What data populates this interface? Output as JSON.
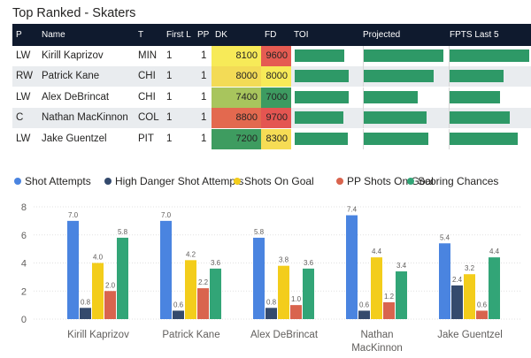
{
  "title": "Top Ranked - Skaters",
  "table": {
    "headers": [
      "P",
      "Name",
      "T",
      "First L",
      "PP",
      "DK",
      "FD",
      "TOI",
      "Projected",
      "FPTS Last 5"
    ],
    "rows": [
      {
        "pos": "LW",
        "name": "Kirill Kaprizov",
        "team": "MIN",
        "first_line": "1",
        "pp": "1",
        "dk": "8100",
        "fd": "9600",
        "dk_color": "#f7ea58",
        "fd_color": "#e55b52",
        "toi": 0.72,
        "proj": 0.98,
        "fpts": 0.98
      },
      {
        "pos": "RW",
        "name": "Patrick Kane",
        "team": "CHI",
        "first_line": "1",
        "pp": "1",
        "dk": "8000",
        "fd": "8000",
        "dk_color": "#f3db56",
        "fd_color": "#f7ea58",
        "toi": 0.78,
        "proj": 0.86,
        "fpts": 0.66
      },
      {
        "pos": "LW",
        "name": "Alex DeBrincat",
        "team": "CHI",
        "first_line": "1",
        "pp": "1",
        "dk": "7400",
        "fd": "7000",
        "dk_color": "#a8c55d",
        "fd_color": "#3d9b61",
        "toi": 0.78,
        "proj": 0.66,
        "fpts": 0.62
      },
      {
        "pos": "C",
        "name": "Nathan MacKinnon",
        "team": "COL",
        "first_line": "1",
        "pp": "1",
        "dk": "8800",
        "fd": "9700",
        "dk_color": "#e3694f",
        "fd_color": "#e45551",
        "toi": 0.7,
        "proj": 0.77,
        "fpts": 0.74
      },
      {
        "pos": "LW",
        "name": "Jake Guentzel",
        "team": "PIT",
        "first_line": "1",
        "pp": "1",
        "dk": "7200",
        "fd": "8300",
        "dk_color": "#3e9c60",
        "fd_color": "#f6dc55",
        "toi": 0.77,
        "proj": 0.79,
        "fpts": 0.84
      }
    ]
  },
  "legend": [
    {
      "label": "Shot Attempts",
      "color": "#4a84e0"
    },
    {
      "label": "High Danger Shot Attempts",
      "color": "#344a6d"
    },
    {
      "label": "Shots On Goal",
      "color": "#f3cd1b"
    },
    {
      "label": "PP Shots On Goal",
      "color": "#d9644e"
    },
    {
      "label": "Scoring Chances",
      "color": "#32a577"
    }
  ],
  "chart_data": {
    "type": "bar",
    "categories": [
      "Kirill Kaprizov",
      "Patrick Kane",
      "Alex DeBrincat",
      "Nathan\nMacKinnon",
      "Jake Guentzel"
    ],
    "series": [
      {
        "name": "Shot Attempts",
        "values": [
          7.0,
          7.0,
          5.8,
          7.4,
          5.4
        ],
        "labels": [
          "7.0",
          "7.0",
          "5.8",
          "7.4",
          "5.4"
        ]
      },
      {
        "name": "High Danger Shot Attempts",
        "values": [
          0.8,
          0.6,
          0.8,
          0.6,
          2.4
        ],
        "labels": [
          "0.8",
          "0.6",
          "0.8",
          "0.6",
          "2.4"
        ]
      },
      {
        "name": "Shots On Goal",
        "values": [
          4.0,
          4.2,
          3.8,
          4.4,
          3.2
        ],
        "labels": [
          "4.0",
          "4.2",
          "3.8",
          "4.4",
          "3.2"
        ]
      },
      {
        "name": "PP Shots On Goal",
        "values": [
          2.0,
          2.2,
          1.0,
          1.2,
          0.6
        ],
        "labels": [
          "2.0",
          "2.2",
          "1.0",
          "1.2",
          "0.6"
        ]
      },
      {
        "name": "Scoring Chances",
        "values": [
          5.8,
          3.6,
          3.6,
          3.4,
          4.4
        ],
        "labels": [
          "5.8",
          "3.6",
          "3.6",
          "3.4",
          "4.4"
        ]
      }
    ],
    "yticks": [
      "0",
      "2",
      "4",
      "6",
      "8"
    ],
    "ylim": [
      0,
      8
    ],
    "title": "",
    "xlabel": "",
    "ylabel": ""
  }
}
